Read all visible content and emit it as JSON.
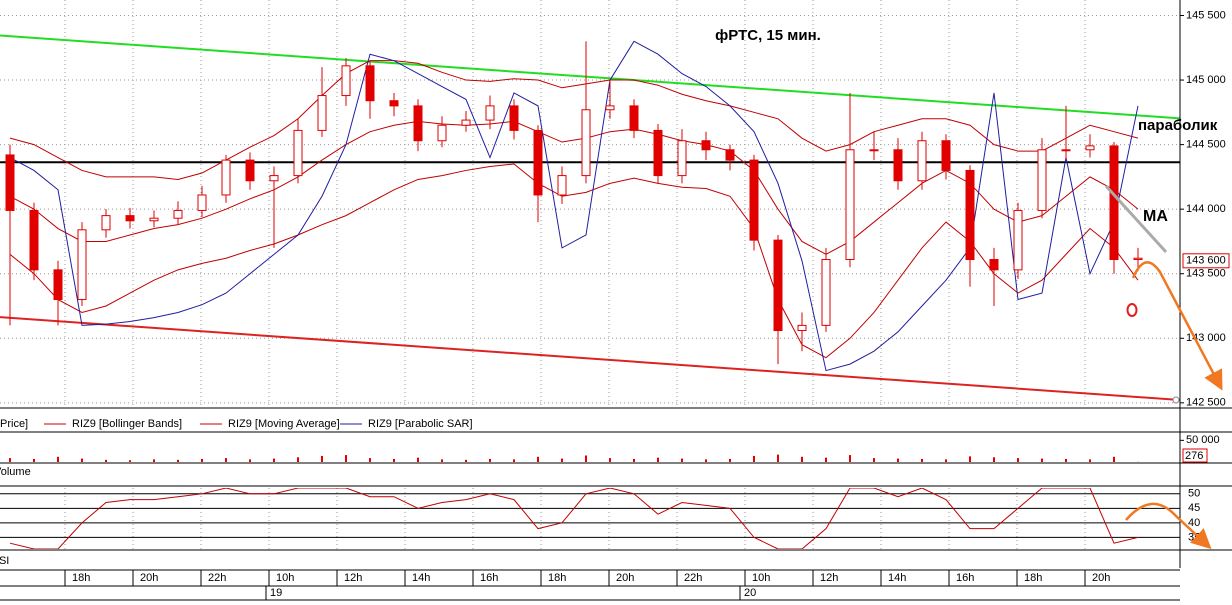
{
  "chart_data": {
    "type": "candlestick",
    "title": "фРТС,  15 мин.",
    "annotations": [
      "параболик",
      "MA"
    ],
    "price_label": {
      "value": 143600,
      "label": "143 600"
    },
    "color": "#e00000",
    "open": [
      144420,
      143990,
      143530,
      143300,
      143840,
      143950,
      143910,
      143930,
      143990,
      144110,
      144380,
      144220,
      144260,
      144610,
      144880,
      145110,
      144840,
      144800,
      144530,
      144650,
      144690,
      144800,
      144610,
      144110,
      144260,
      144770,
      144800,
      144610,
      144260,
      144530,
      144460,
      144380,
      143760,
      143060,
      143100,
      143610,
      144460,
      144460,
      144220,
      144530,
      144300,
      143610,
      143530,
      143990,
      144460,
      144460,
      144490,
      143610
    ],
    "high": [
      144500,
      144050,
      143600,
      143900,
      144000,
      144010,
      143990,
      144060,
      144180,
      144420,
      144440,
      144330,
      144700,
      145100,
      145170,
      145150,
      144900,
      144850,
      144720,
      144760,
      144880,
      144850,
      144650,
      144330,
      145300,
      145000,
      144850,
      144660,
      144620,
      144600,
      144500,
      144420,
      143800,
      143200,
      143700,
      144900,
      144600,
      144550,
      144600,
      144580,
      144340,
      143700,
      144050,
      144550,
      144800,
      144580,
      144520,
      143700
    ],
    "low": [
      143100,
      143450,
      143100,
      143250,
      143780,
      143850,
      143860,
      143880,
      143940,
      144050,
      144150,
      143700,
      144200,
      144560,
      144800,
      144700,
      144720,
      144450,
      144480,
      144600,
      144620,
      144540,
      143900,
      144040,
      144200,
      144700,
      144550,
      144200,
      144200,
      144380,
      144300,
      143680,
      142800,
      142900,
      143050,
      143550,
      144380,
      144150,
      144150,
      144230,
      143400,
      143250,
      143460,
      143930,
      144380,
      144400,
      143500,
      143520
    ],
    "close": [
      143990,
      143530,
      143300,
      143840,
      143950,
      143910,
      143930,
      143990,
      144110,
      144380,
      144220,
      144260,
      144610,
      144880,
      145110,
      144840,
      144800,
      144530,
      144650,
      144690,
      144800,
      144610,
      144110,
      144260,
      144770,
      144800,
      144610,
      144260,
      144530,
      144460,
      144380,
      143760,
      143060,
      143100,
      143610,
      144460,
      144460,
      144220,
      144530,
      144300,
      143610,
      143530,
      143990,
      144460,
      144460,
      144490,
      143610,
      143620
    ],
    "ylim": [
      142460,
      145620
    ],
    "yticks": [
      {
        "value": 145500,
        "label": "145 500"
      },
      {
        "value": 145000,
        "label": "145 000"
      },
      {
        "value": 144500,
        "label": "144 500"
      },
      {
        "value": 144000,
        "label": "144 000"
      },
      {
        "value": 143500,
        "label": "143 500"
      },
      {
        "value": 143000,
        "label": "143 000"
      },
      {
        "value": 142500,
        "label": "142 500"
      }
    ],
    "grid": true,
    "legend_prefix": "Price]",
    "overlays": [
      {
        "name": "RIZ9 [Bollinger Bands]",
        "color": "#c00000",
        "upper": [
          144550,
          144500,
          144400,
          144300,
          144250,
          144250,
          144250,
          144230,
          144280,
          144380,
          144480,
          144570,
          144700,
          144880,
          145050,
          145150,
          145150,
          145130,
          145060,
          145000,
          144990,
          145010,
          145000,
          144940,
          144970,
          145000,
          145000,
          144960,
          144890,
          144840,
          144800,
          144750,
          144700,
          144550,
          144450,
          144500,
          144600,
          144650,
          144700,
          144700,
          144650,
          144500,
          144450,
          144450,
          144550,
          144650,
          144600,
          144550
        ],
        "lower": [
          143650,
          143500,
          143300,
          143200,
          143250,
          143350,
          143450,
          143530,
          143580,
          143620,
          143680,
          143730,
          143800,
          143880,
          143950,
          144050,
          144150,
          144230,
          144260,
          144300,
          144330,
          144350,
          144200,
          144100,
          144130,
          144200,
          144240,
          144200,
          144170,
          144160,
          144100,
          143850,
          143300,
          142950,
          142850,
          143000,
          143200,
          143450,
          143700,
          143900,
          143750,
          143500,
          143350,
          143450,
          143650,
          143850,
          143700,
          143450
        ]
      },
      {
        "name": "RIZ9 [Moving Average]",
        "color": "#c00000",
        "values": [
          144100,
          144000,
          143850,
          143750,
          143750,
          143800,
          143850,
          143880,
          143930,
          144000,
          144080,
          144150,
          144250,
          144380,
          144500,
          144600,
          144650,
          144680,
          144660,
          144650,
          144660,
          144680,
          144600,
          144520,
          144550,
          144600,
          144620,
          144580,
          144530,
          144500,
          144450,
          144300,
          144000,
          143750,
          143650,
          143750,
          143900,
          144050,
          144200,
          144300,
          144200,
          144000,
          143900,
          143950,
          144100,
          144250,
          144150,
          144000
        ]
      },
      {
        "name": "RIZ9 [Parabolic SAR]",
        "color": "#1f1fa0",
        "values": [
          144400,
          144300,
          144150,
          143100,
          143110,
          143130,
          143160,
          143200,
          143260,
          143350,
          143500,
          143650,
          143800,
          144100,
          144500,
          145200,
          145150,
          145050,
          144950,
          144850,
          144400,
          144900,
          144800,
          143700,
          143800,
          145000,
          145300,
          145200,
          145050,
          144950,
          144800,
          144600,
          144200,
          143600,
          142750,
          142800,
          142900,
          143050,
          143250,
          143450,
          143700,
          144900,
          143300,
          143350,
          144400,
          143500,
          143900,
          144800
        ]
      }
    ],
    "trend_lines": [
      {
        "color": "#22dd22",
        "values": [
          145345,
          144703
        ]
      },
      {
        "color": "#000000",
        "values": [
          144363,
          144363
        ]
      },
      {
        "color": "#dd2222",
        "values": [
          143164,
          142522
        ]
      }
    ],
    "volume": {
      "label": "Volume",
      "color": "#e00000",
      "ylim": [
        0,
        60000
      ],
      "yticks": [
        {
          "value": 50000,
          "label": "50 000"
        }
      ],
      "values": [
        9000,
        7000,
        12000,
        8000,
        5000,
        4000,
        6000,
        5000,
        7000,
        9000,
        6000,
        8000,
        11000,
        14000,
        16000,
        9000,
        7000,
        10000,
        6000,
        5000,
        7000,
        6000,
        12000,
        8000,
        15000,
        9000,
        7000,
        10000,
        8000,
        6000,
        7000,
        14000,
        17000,
        12000,
        10000,
        16000,
        9000,
        8000,
        7000,
        6000,
        13000,
        11000,
        9000,
        8000,
        7000,
        6000,
        12000,
        276
      ]
    },
    "rsi": {
      "label": "RSI",
      "color": "#c00000",
      "ylim": [
        31,
        52
      ],
      "yticks": [
        50,
        45,
        40,
        35
      ],
      "values": [
        33,
        31,
        31,
        40,
        47,
        48,
        48,
        49,
        50,
        52,
        50,
        50,
        52,
        52,
        52,
        49,
        49,
        45,
        47,
        48,
        50,
        48,
        38,
        40,
        50,
        52,
        50,
        43,
        47,
        46,
        45,
        35,
        31,
        31,
        38,
        52,
        52,
        49,
        52,
        48,
        38,
        38,
        45,
        52,
        52,
        52,
        33,
        35
      ]
    },
    "time_labels": [
      "18h",
      "20h",
      "22h",
      "10h",
      "12h",
      "14h",
      "16h",
      "18h",
      "20h",
      "22h",
      "10h",
      "12h",
      "14h",
      "16h",
      "18h",
      "20h"
    ],
    "date_labels": [
      "19",
      "20"
    ]
  }
}
